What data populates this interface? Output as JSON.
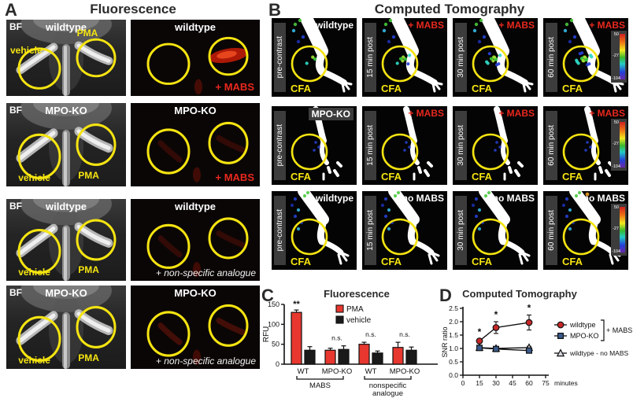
{
  "figure": {
    "panel_a": {
      "label": "A",
      "title": "Fluorescence",
      "rows": [
        {
          "corner_tag": "BF",
          "genotype": "wildtype",
          "injection_left": "vehicle",
          "injection_right": "PMA",
          "fluoro_title": "wildtype",
          "fluoro_caption": "+ MABS",
          "caption_kind": "mabs"
        },
        {
          "corner_tag": "BF",
          "genotype": "MPO-KO",
          "injection_left": "vehicle",
          "injection_right": "PMA",
          "fluoro_title": "MPO-KO",
          "fluoro_caption": "+ MABS",
          "caption_kind": "mabs"
        },
        {
          "corner_tag": "BF",
          "genotype": "wildtype",
          "injection_left": "vehicle",
          "injection_right": "PMA",
          "fluoro_title": "wildtype",
          "fluoro_caption": "+ non-specific analogue",
          "caption_kind": "analogue"
        },
        {
          "corner_tag": "BF",
          "genotype": "MPO-KO",
          "injection_left": "vehicle",
          "injection_right": "PMA",
          "fluoro_title": "MPO-KO",
          "fluoro_caption": "+ non-specific analogue",
          "caption_kind": "analogue"
        }
      ]
    },
    "panel_b": {
      "label": "B",
      "title": "Computed Tomography",
      "timepoints": [
        "pre-contrast",
        "15 min post",
        "30 min post",
        "60 min post"
      ],
      "rows": [
        {
          "subject": "wildtype",
          "condition": "+ MABS",
          "condition_kind": "mabs"
        },
        {
          "subject": "MPO-KO",
          "condition": "+ MABS",
          "condition_kind": "mabs"
        },
        {
          "subject": "wildtype",
          "condition": "no MABS",
          "condition_kind": "nomabs"
        }
      ],
      "roi_label": "CFA",
      "colorbar_ticks": [
        "50",
        "-27",
        "-104"
      ]
    },
    "panel_c_label": "C",
    "panel_d_label": "D"
  },
  "chart_data": [
    {
      "id": "fluorescence-bars",
      "type": "bar",
      "title": "Fluorescence",
      "ylabel": "RFU",
      "ylim": [
        0,
        150
      ],
      "yticks": [
        0,
        50,
        100,
        150
      ],
      "categories": [
        "WT",
        "MPO-KO",
        "WT",
        "MPO-KO"
      ],
      "group_brackets": [
        {
          "label": [
            "MABS"
          ],
          "span": [
            0,
            1
          ]
        },
        {
          "label": [
            "nonspecific",
            "analogue"
          ],
          "span": [
            2,
            3
          ]
        }
      ],
      "series": [
        {
          "name": "PMA",
          "color": "#e8372e",
          "values": [
            130,
            35,
            50,
            42
          ],
          "errors": [
            6,
            5,
            5,
            13
          ]
        },
        {
          "name": "vehicle",
          "color": "#1a1a1a",
          "values": [
            35,
            37,
            28,
            35
          ],
          "errors": [
            9,
            9,
            5,
            8
          ]
        }
      ],
      "annotations": [
        {
          "text": "**",
          "category": 0
        },
        {
          "text": "n.s.",
          "category": 1
        },
        {
          "text": "n.s.",
          "category": 2
        },
        {
          "text": "n.s.",
          "category": 3
        }
      ],
      "legend_position": "top-right",
      "grid": false
    },
    {
      "id": "ct-snr-line",
      "type": "line",
      "title": "Computed Tomography",
      "ylabel": "SNR ratio",
      "xlabel": "minutes",
      "xlim": [
        0,
        75
      ],
      "xticks": [
        0,
        15,
        30,
        45,
        60,
        75
      ],
      "ylim": [
        0,
        2.5
      ],
      "yticks": [
        0.0,
        0.5,
        1.0,
        1.5,
        2.0,
        2.5
      ],
      "x": [
        15,
        30,
        60
      ],
      "series": [
        {
          "name": "wildtype",
          "marker": "circle",
          "color": "#c62828",
          "values": [
            1.28,
            1.78,
            1.97
          ],
          "errors": [
            0.08,
            0.22,
            0.28
          ]
        },
        {
          "name": "MPO-KO",
          "marker": "square",
          "color": "#3a5a8c",
          "values": [
            1.02,
            0.98,
            0.92
          ],
          "errors": [
            0.05,
            0.06,
            0.08
          ]
        },
        {
          "name": "wildtype - no MABS",
          "marker": "triangle",
          "color": "#d6d6de",
          "values": [
            1.03,
            1.0,
            1.03
          ],
          "errors": [
            0.04,
            0.05,
            0.05
          ]
        }
      ],
      "sig_markers": [
        {
          "x": 15,
          "text": "*"
        },
        {
          "x": 30,
          "text": "*"
        },
        {
          "x": 60,
          "text": "*"
        }
      ],
      "legend_bracket_label": "+ MABS",
      "legend_position": "right",
      "grid": false
    }
  ],
  "colors": {
    "accent_red": "#e8281e",
    "roi_yellow": "#f5e411",
    "bar_red": "#e8372e",
    "bar_black": "#1a1a1a",
    "line_red": "#c62828",
    "line_blue": "#3a5a8c",
    "triangle_gray": "#d6d6de"
  }
}
